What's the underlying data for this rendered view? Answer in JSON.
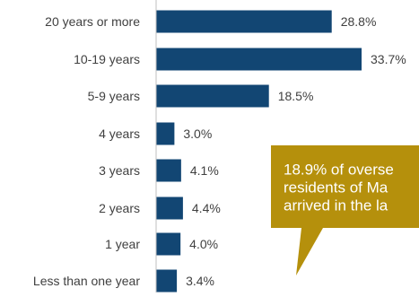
{
  "chart_data": {
    "type": "bar",
    "orientation": "horizontal",
    "categories": [
      "20 years or more",
      "10-19 years",
      "5-9 years",
      "4 years",
      "3 years",
      "2 years",
      "1 year",
      "Less than one year"
    ],
    "values": [
      28.8,
      33.7,
      18.5,
      3.0,
      4.1,
      4.4,
      4.0,
      3.4
    ],
    "value_labels": [
      "28.8%",
      "33.7%",
      "18.5%",
      "3.0%",
      "4.1%",
      "4.4%",
      "4.0%",
      "3.4%"
    ],
    "bar_color": "#124673",
    "title": "",
    "xlabel": "",
    "ylabel": "",
    "grid": false
  },
  "callout": {
    "text_lines": [
      "18.9% of overse",
      "residents of Ma",
      "arrived in the la"
    ],
    "bg_color": "#B5900C",
    "text_color": "#FFFFFF"
  }
}
